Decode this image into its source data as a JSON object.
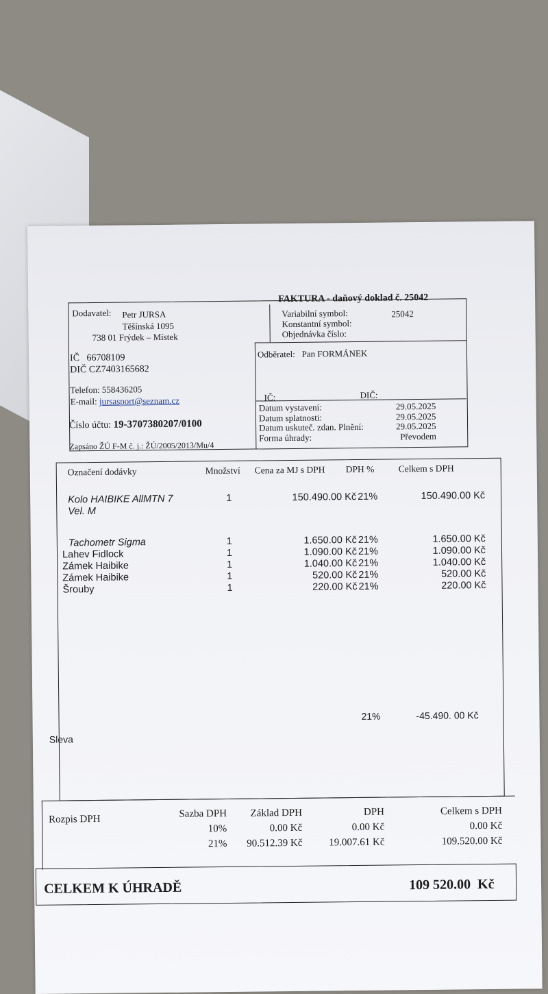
{
  "invoice": {
    "title": "FAKTURA - daňový doklad č. 25042",
    "supplier": {
      "label": "Dodavatel:",
      "name": "Petr JURSA",
      "street": "Těšínská 1095",
      "city": "738 01 Frýdek – Místek",
      "ic": "IČ   66708109",
      "dic": "DIČ CZ7403165682",
      "phone": "Telefon: 558436205",
      "email_label": "E-mail:",
      "email": "jursasport@seznam.cz",
      "account_label": "Číslo účtu:",
      "account": "19-3707380207/0100",
      "registered": "Zapsáno ŽÚ F-M č. j.: ŽÚ/2005/2013/Mu/4"
    },
    "symbols": {
      "variable_label": "Variabilní symbol:",
      "variable": "25042",
      "constant_label": "Konstantní symbol:",
      "order_label": "Objednávka číslo:"
    },
    "customer": {
      "label": "Odběratel:",
      "name": "Pan FORMÁNEK",
      "ic_label": "IČ:",
      "dic_label": "DIČ:"
    },
    "dates": [
      {
        "label": "Datum vystavení:",
        "value": "29.05.2025"
      },
      {
        "label": "Datum splatnosti:",
        "value": "29.05.2025"
      },
      {
        "label": "Datum uskuteč. zdan. Plnění:",
        "value": "29.05.2025"
      },
      {
        "label": "Forma úhrady:",
        "value": "Převodem"
      }
    ],
    "items_header": [
      "Označení dodávky",
      "Množství",
      "Cena za MJ s DPH",
      "DPH %",
      "Celkem s DPH"
    ],
    "items": [
      {
        "name": "Kolo HAIBIKE AllMTN 7",
        "name2": "Vel. M",
        "qty": "1",
        "price": "150.490.00 Kč",
        "vat": "21%",
        "total": "150.490.00 Kč"
      },
      {
        "name": "Tachometr Sigma",
        "qty": "1",
        "price": "1.650.00 Kč",
        "vat": "21%",
        "total": "1.650.00 Kč"
      },
      {
        "name": "Lahev Fidlock",
        "qty": "1",
        "price": "1.090.00 Kč",
        "vat": "21%",
        "total": "1.090.00 Kč"
      },
      {
        "name": "Zámek Haibike",
        "qty": "1",
        "price": "1.040.00 Kč",
        "vat": "21%",
        "total": "1.040.00 Kč"
      },
      {
        "name": "Zámek Haibike",
        "qty": "1",
        "price": "520.00 Kč",
        "vat": "21%",
        "total": "520.00 Kč"
      },
      {
        "name": "Šrouby",
        "qty": "1",
        "price": "220.00 Kč",
        "vat": "21%",
        "total": "220.00 Kč"
      }
    ],
    "discount": {
      "label": "Sleva",
      "vat": "21%",
      "total": "-45.490. 00 Kč"
    },
    "vat_summary": {
      "label": "Rozpis DPH",
      "headers": [
        "Sazba DPH",
        "Základ DPH",
        "DPH",
        "Celkem s DPH"
      ],
      "rows": [
        [
          "10%",
          "0.00 Kč",
          "0.00 Kč",
          "0.00 Kč"
        ],
        [
          "21%",
          "90.512.39 Kč",
          "19.007.61 Kč",
          "109.520.00 Kč"
        ]
      ]
    },
    "total_label": "CELKEM K ÚHRADĚ",
    "total": "109 520.00  Kč"
  }
}
